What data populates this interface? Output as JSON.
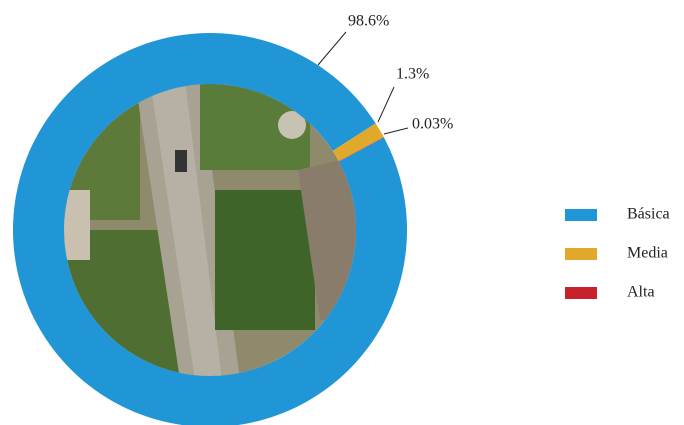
{
  "chart_data": {
    "type": "donut",
    "categories": [
      "Básica",
      "Media",
      "Alta"
    ],
    "values": [
      98.6,
      1.3,
      0.03
    ],
    "value_labels": [
      "98.6%",
      "1.3%",
      "0.03%"
    ],
    "colors": [
      "#2196d6",
      "#e0a92b",
      "#c8212b"
    ],
    "legend": "right"
  }
}
